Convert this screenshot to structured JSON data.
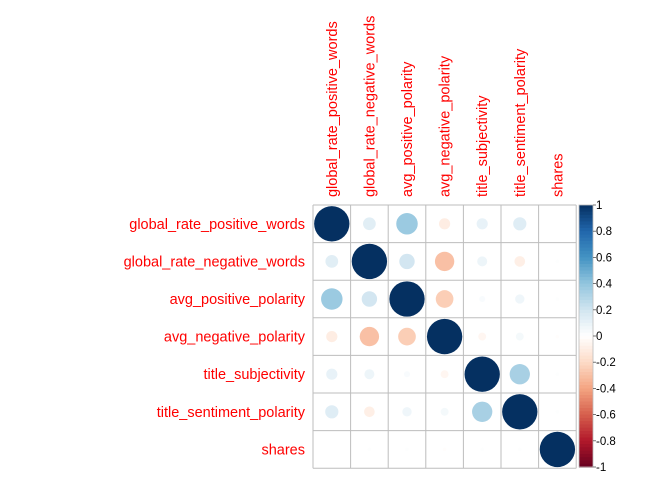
{
  "chart_data": {
    "type": "heatmap",
    "title": "",
    "variables": [
      "global_rate_positive_words",
      "global_rate_negative_words",
      "avg_positive_polarity",
      "avg_negative_polarity",
      "title_subjectivity",
      "title_sentiment_polarity",
      "shares"
    ],
    "matrix": [
      [
        1.0,
        0.13,
        0.37,
        -0.1,
        0.1,
        0.14,
        0.0
      ],
      [
        0.13,
        1.0,
        0.19,
        -0.3,
        0.08,
        -0.09,
        0.01
      ],
      [
        0.37,
        0.19,
        1.0,
        -0.25,
        0.03,
        0.07,
        0.01
      ],
      [
        -0.1,
        -0.3,
        -0.25,
        1.0,
        -0.05,
        0.05,
        -0.01
      ],
      [
        0.1,
        0.08,
        0.03,
        -0.05,
        1.0,
        0.33,
        0.01
      ],
      [
        0.14,
        -0.09,
        0.07,
        0.05,
        0.33,
        1.0,
        0.01
      ],
      [
        0.0,
        0.01,
        0.01,
        -0.01,
        0.01,
        0.01,
        1.0
      ]
    ],
    "colorbar": {
      "range": [
        -1,
        1
      ],
      "ticks": [
        "1",
        "0.8",
        "0.6",
        "0.4",
        "0.2",
        "0",
        "-0.2",
        "-0.4",
        "-0.6",
        "-0.8",
        "-1"
      ]
    },
    "colors": {
      "label": "#ff0000",
      "grid": "#bdbdbd",
      "negative_end": "#67001f",
      "positive_end": "#053061",
      "neutral": "#ffffff"
    },
    "method": "circle"
  }
}
